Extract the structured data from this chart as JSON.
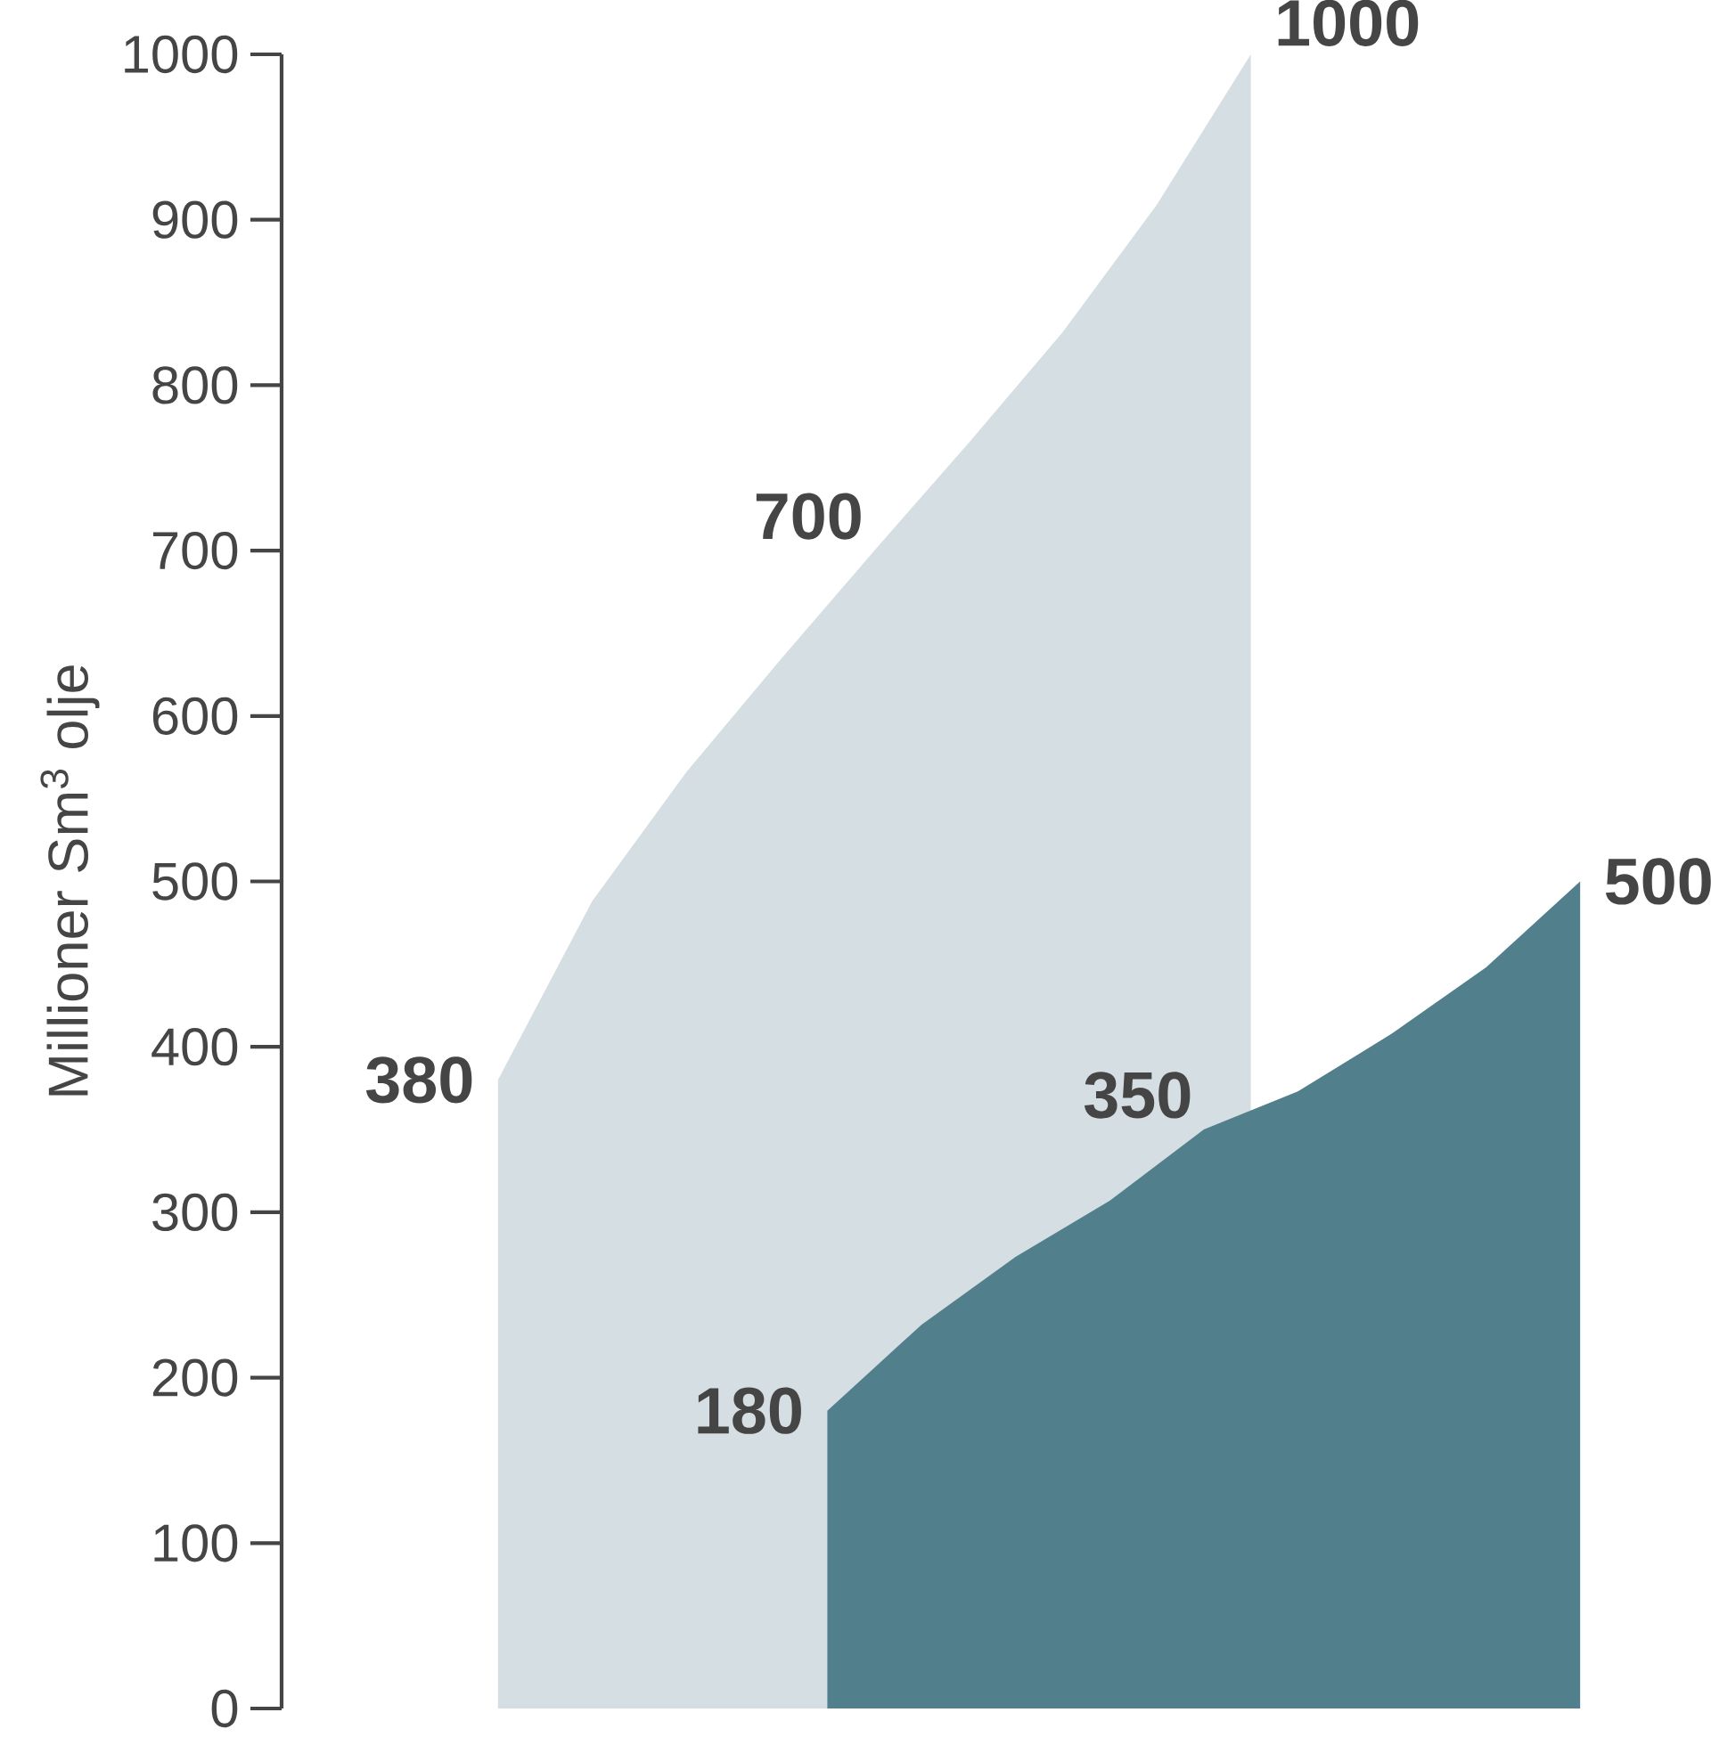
{
  "chart_data": {
    "type": "area",
    "ylabel": "Millioner Sm$^{3}$ olje",
    "categories": [
      null,
      null,
      null,
      null,
      null,
      null,
      null,
      null,
      null,
      null,
      null,
      null,
      null,
      null,
      null,
      null,
      null,
      null,
      null,
      null,
      null,
      null,
      null,
      null
    ],
    "ylim": [
      0,
      1000
    ],
    "yticks": [
      0,
      100,
      200,
      300,
      400,
      500,
      600,
      700,
      800,
      900,
      1000
    ],
    "grid": false,
    "series": [
      {
        "color": "#d5dee2",
        "values": [
          380,
          null,
          488,
          null,
          566,
          null,
          634,
          null,
          700,
          null,
          765,
          null,
          832,
          null,
          909,
          null,
          1000,
          null,
          null,
          null,
          null,
          null,
          null,
          null
        ],
        "value_labels": [
          "380",
          null,
          null,
          null,
          null,
          null,
          null,
          null,
          "700",
          null,
          null,
          null,
          null,
          null,
          null,
          null,
          "1000",
          null,
          null,
          null,
          null,
          null,
          null,
          null
        ]
      },
      {
        "color": "#517f8c",
        "values": [
          null,
          null,
          null,
          null,
          null,
          null,
          null,
          180,
          null,
          232,
          null,
          273,
          null,
          307,
          null,
          350,
          null,
          373,
          null,
          408,
          null,
          448,
          null,
          500
        ],
        "value_labels": [
          null,
          null,
          null,
          null,
          null,
          null,
          null,
          "180",
          null,
          null,
          null,
          null,
          null,
          null,
          null,
          "350",
          null,
          null,
          null,
          null,
          null,
          null,
          null,
          "500"
        ]
      }
    ]
  }
}
